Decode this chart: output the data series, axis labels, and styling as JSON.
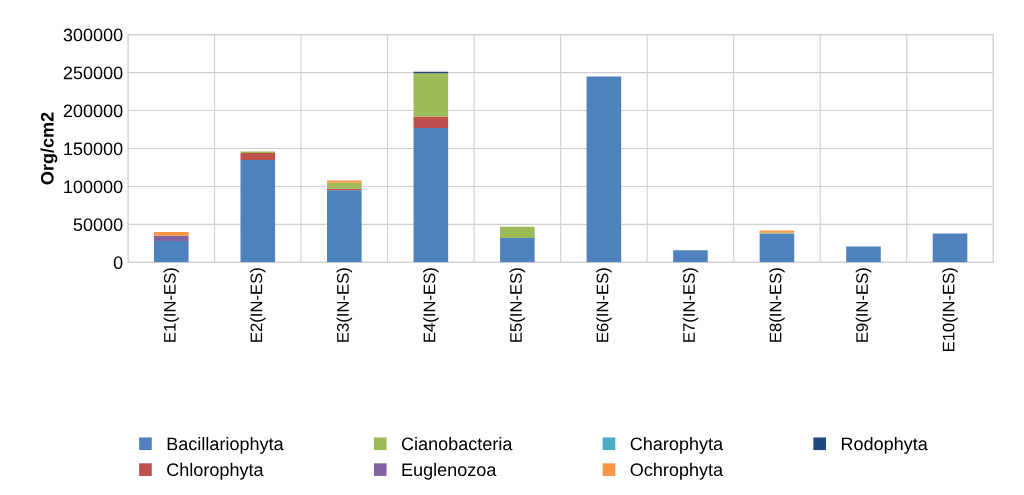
{
  "chart_data": {
    "type": "bar",
    "stacked": true,
    "ylabel": "Org/cm2",
    "categories": [
      "E1(IN-ES)",
      "E2(IN-ES)",
      "E3(IN-ES)",
      "E4(IN-ES)",
      "E5(IN-ES)",
      "E6(IN-ES)",
      "E7(IN-ES)",
      "E8(IN-ES)",
      "E9(IN-ES)",
      "E10(IN-ES)"
    ],
    "series": [
      {
        "name": "Bacillariophyta",
        "color": "#4f81bd",
        "values": [
          28000,
          135000,
          95000,
          177000,
          32000,
          245000,
          16000,
          38000,
          21000,
          38000
        ]
      },
      {
        "name": "Chlorophyta",
        "color": "#c0504d",
        "values": [
          0,
          9000,
          2000,
          15000,
          0,
          0,
          0,
          0,
          0,
          0
        ]
      },
      {
        "name": "Cianobacteria",
        "color": "#9bbb59",
        "values": [
          0,
          2000,
          8000,
          57000,
          15000,
          0,
          0,
          1000,
          0,
          0
        ]
      },
      {
        "name": "Euglenozoa",
        "color": "#8064a2",
        "values": [
          7000,
          0,
          0,
          0,
          0,
          0,
          0,
          0,
          0,
          0
        ]
      },
      {
        "name": "Charophyta",
        "color": "#4bacc6",
        "values": [
          0,
          0,
          0,
          0,
          0,
          0,
          0,
          0,
          0,
          0
        ]
      },
      {
        "name": "Ochrophyta",
        "color": "#f79646",
        "values": [
          5000,
          0,
          3000,
          0,
          0,
          0,
          0,
          3000,
          0,
          0
        ]
      },
      {
        "name": "Rodophyta",
        "color": "#1f497d",
        "values": [
          0,
          0,
          0,
          2000,
          0,
          0,
          0,
          0,
          0,
          0
        ]
      }
    ],
    "ylim": [
      0,
      300000
    ],
    "yticks": [
      0,
      50000,
      100000,
      150000,
      200000,
      250000,
      300000
    ],
    "grid": true,
    "legend": "bottom"
  }
}
